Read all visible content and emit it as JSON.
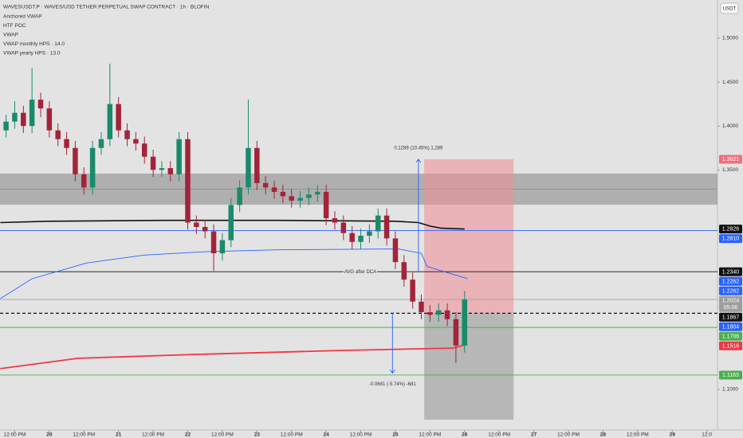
{
  "chart_data": {
    "type": "candlestick",
    "title": "WAVESUSDT.P · WAVES/USD TETHER PERPETUAL SWAP CONTRACT · 1h · BLOFIN",
    "indicators": [
      "Anchored VWAP",
      "HTF POC",
      "VWAP",
      "VWAP monthly HPS · 14.0",
      "VWAP yearly HPS · 13.0"
    ],
    "currency": "USDT",
    "up_color": "#1b8a6b",
    "down_color": "#a3243a",
    "grid": false,
    "x": [
      -15,
      -12,
      -9,
      -6,
      -3,
      0,
      3,
      6,
      9,
      12,
      15,
      18,
      21,
      24,
      27,
      30,
      33,
      36,
      39,
      42,
      45,
      48,
      51,
      54,
      57,
      60,
      63,
      66,
      69,
      72,
      75,
      78,
      81,
      84,
      87,
      90,
      93,
      96,
      99,
      102,
      105,
      108,
      111,
      114,
      117,
      120,
      123,
      126,
      129,
      132,
      135,
      138,
      141,
      144
    ],
    "open": [
      1.395,
      1.405,
      1.415,
      1.4,
      1.43,
      1.42,
      1.395,
      1.385,
      1.375,
      1.345,
      1.33,
      1.375,
      1.385,
      1.425,
      1.395,
      1.385,
      1.38,
      1.365,
      1.35,
      1.352,
      1.345,
      1.385,
      1.29,
      1.285,
      1.28,
      1.255,
      1.27,
      1.31,
      1.33,
      1.375,
      1.335,
      1.33,
      1.325,
      1.32,
      1.315,
      1.318,
      1.322,
      1.325,
      1.295,
      1.29,
      1.278,
      1.268,
      1.275,
      1.28,
      1.298,
      1.272,
      1.245,
      1.225,
      1.2,
      1.188,
      1.185,
      1.19,
      1.18,
      1.15
    ],
    "high": [
      1.413,
      1.428,
      1.423,
      1.466,
      1.438,
      1.428,
      1.403,
      1.393,
      1.383,
      1.353,
      1.383,
      1.393,
      1.471,
      1.433,
      1.403,
      1.393,
      1.388,
      1.373,
      1.36,
      1.36,
      1.393,
      1.393,
      1.298,
      1.293,
      1.288,
      1.278,
      1.318,
      1.338,
      1.43,
      1.383,
      1.343,
      1.338,
      1.333,
      1.328,
      1.326,
      1.33,
      1.333,
      1.333,
      1.303,
      1.298,
      1.286,
      1.283,
      1.288,
      1.306,
      1.306,
      1.28,
      1.253,
      1.233,
      1.208,
      1.196,
      1.198,
      1.198,
      1.188,
      1.212
    ],
    "low": [
      1.387,
      1.397,
      1.392,
      1.392,
      1.41,
      1.387,
      1.377,
      1.367,
      1.337,
      1.322,
      1.322,
      1.367,
      1.377,
      1.387,
      1.377,
      1.372,
      1.357,
      1.342,
      1.342,
      1.337,
      1.337,
      1.282,
      1.277,
      1.272,
      1.235,
      1.247,
      1.262,
      1.302,
      1.322,
      1.327,
      1.322,
      1.317,
      1.312,
      1.307,
      1.307,
      1.31,
      1.314,
      1.287,
      1.282,
      1.27,
      1.26,
      1.26,
      1.267,
      1.272,
      1.264,
      1.237,
      1.217,
      1.192,
      1.18,
      1.177,
      1.177,
      1.172,
      1.13,
      1.142
    ],
    "close": [
      1.405,
      1.415,
      1.4,
      1.43,
      1.42,
      1.395,
      1.385,
      1.375,
      1.345,
      1.33,
      1.375,
      1.385,
      1.425,
      1.395,
      1.385,
      1.38,
      1.365,
      1.35,
      1.352,
      1.345,
      1.385,
      1.29,
      1.285,
      1.28,
      1.255,
      1.27,
      1.31,
      1.33,
      1.375,
      1.335,
      1.33,
      1.325,
      1.32,
      1.315,
      1.318,
      1.322,
      1.325,
      1.295,
      1.29,
      1.278,
      1.268,
      1.275,
      1.28,
      1.298,
      1.272,
      1.245,
      1.225,
      1.2,
      1.188,
      1.185,
      1.19,
      1.18,
      1.15,
      1.2024
    ],
    "overlays": [
      {
        "color": "#111111",
        "width": 1.6,
        "x": [
          -17,
          0,
          40,
          80,
          120,
          128,
          132,
          136,
          144
        ],
        "values": [
          1.29,
          1.2915,
          1.2925,
          1.2925,
          1.2915,
          1.29,
          1.286,
          1.2835,
          1.2826
        ]
      },
      {
        "color": "#2962ff",
        "width": 0.9,
        "x": [
          -17,
          -6,
          13,
          33,
          55,
          79,
          121,
          129,
          131,
          137,
          145
        ],
        "values": [
          1.2034,
          1.226,
          1.244,
          1.253,
          1.257,
          1.259,
          1.26,
          1.255,
          1.24,
          1.234,
          1.2262
        ]
      },
      {
        "color": "#f23645",
        "width": 1.8,
        "x": [
          -17,
          10,
          52,
          102,
          140,
          145
        ],
        "values": [
          1.1236,
          1.1354,
          1.14,
          1.1444,
          1.147,
          1.1516
        ]
      }
    ],
    "zone": {
      "top": 1.3458,
      "mid": 1.3283,
      "bottom": 1.3104
    },
    "horizontal_lines": [
      {
        "value": 1.281,
        "color": "#2962ff",
        "dash": false
      },
      {
        "value": 1.234,
        "color": "#111111",
        "dash": false,
        "label": "AVG after DCA"
      },
      {
        "value": 1.2024,
        "color": "#a0a0a0",
        "dash": false
      },
      {
        "value": 1.1867,
        "color": "#111111",
        "dash": true
      },
      {
        "value": 1.1706,
        "color": "#4caf50",
        "dash": false
      },
      {
        "value": 1.1163,
        "color": "#4caf50",
        "dash": false
      }
    ],
    "position": {
      "x0": 130,
      "x1": 161,
      "target": 1.3621,
      "entry": 1.1867,
      "stop": 1.0655
    },
    "measures": [
      {
        "x": 128,
        "from": 1.2332,
        "to": 1.3621,
        "label": "0.1289 (10.45%) 1,289"
      },
      {
        "x": 119,
        "from": 1.1867,
        "to": 1.1186,
        "label": "-0.0681 (-5.74%) -681"
      }
    ],
    "price_badges": [
      {
        "value": 1.3621,
        "label": "1.3621",
        "color": "#f0707e"
      },
      {
        "value": 1.2826,
        "label": "1.2826",
        "color": "#111111"
      },
      {
        "value": 1.281,
        "label": "1.2810",
        "color": "#2962ff"
      },
      {
        "value": 1.234,
        "label": "1.2340",
        "color": "#111111"
      },
      {
        "value": 1.2262,
        "label": "1.2262",
        "color": "#2962ff"
      },
      {
        "value": 1.2262,
        "label": "1.2262",
        "color": "#2962ff"
      },
      {
        "value": 1.2024,
        "label": "1.2024",
        "color": "#9e9e9e",
        "countdown": "05:06"
      },
      {
        "value": 1.1867,
        "label": "1.1867",
        "color": "#111111"
      },
      {
        "value": 1.1804,
        "label": "1.1804",
        "color": "#2962ff"
      },
      {
        "value": 1.1706,
        "label": "1.1706",
        "color": "#4caf50"
      },
      {
        "value": 1.1516,
        "label": "1.1516",
        "color": "#f23645"
      },
      {
        "value": 1.1163,
        "label": "1.1163",
        "color": "#4caf50"
      }
    ],
    "xlim": [
      -17.1,
      231.7
    ],
    "xticks": [
      {
        "value": -12,
        "label": "12:00 PM"
      },
      0,
      {
        "value": 12,
        "label": "12:00 PM"
      },
      24,
      {
        "value": 36,
        "label": "12:00 PM"
      },
      48,
      {
        "value": 60,
        "label": "12:00 PM"
      },
      72,
      {
        "value": 84,
        "label": "12:00 PM"
      },
      96,
      {
        "value": 108,
        "label": "12:00 PM"
      },
      120,
      {
        "value": 132,
        "label": "12:00 PM"
      },
      144,
      {
        "value": 156,
        "label": "12:00 PM"
      },
      168,
      {
        "value": 180,
        "label": "12:00 PM"
      },
      192,
      {
        "value": 204,
        "label": "12:00 PM"
      },
      216,
      {
        "value": 228,
        "label": "12:0"
      }
    ],
    "xtick_day_labels": [
      "20",
      "21",
      "22",
      "23",
      "24",
      "25",
      "26",
      "27",
      "28",
      "29"
    ],
    "ylim": [
      1.0537,
      1.5435
    ],
    "yticks": [
      {
        "value": 1.5,
        "label": "1.5000"
      },
      {
        "value": 1.45,
        "label": "1.4500"
      },
      {
        "value": 1.4,
        "label": "1.4000"
      },
      {
        "value": 1.35,
        "label": "1.3500"
      },
      {
        "value": 1.1,
        "label": "1.1000"
      }
    ]
  }
}
